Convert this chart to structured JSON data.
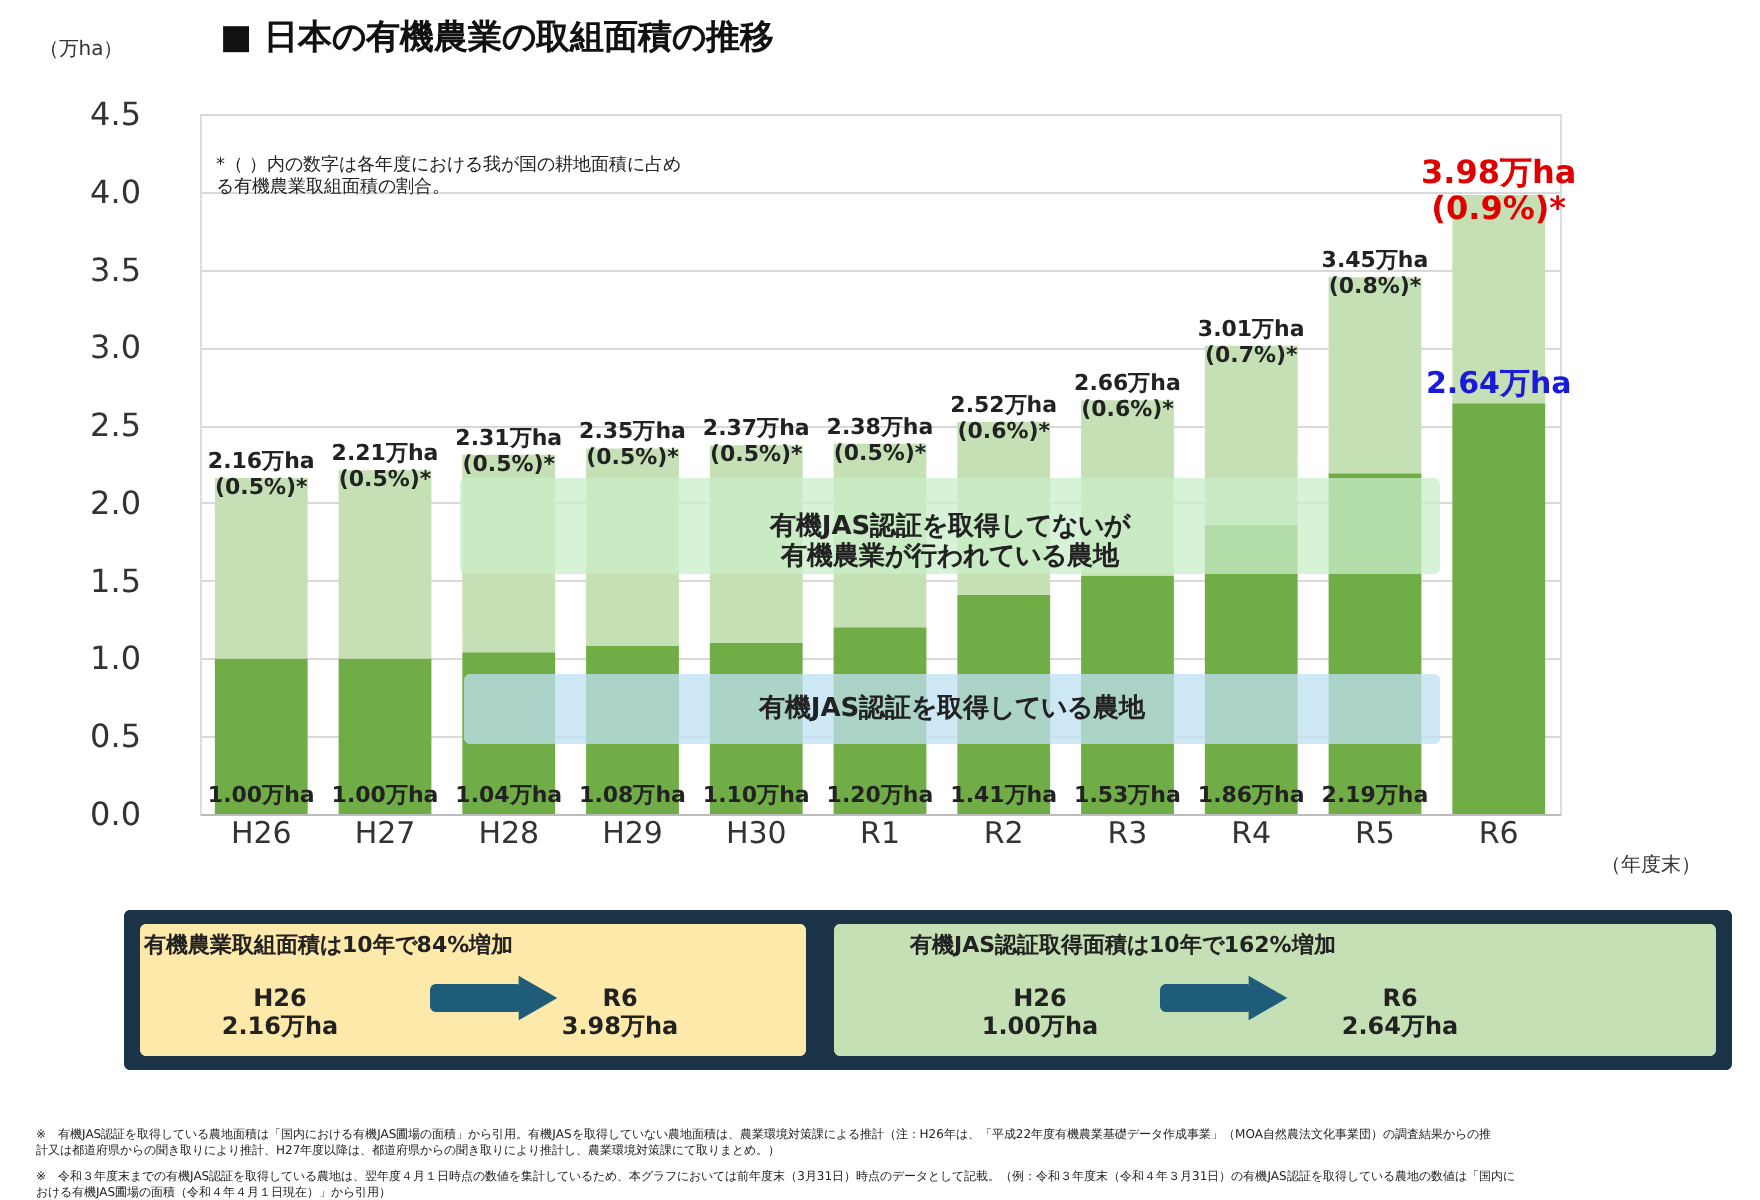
{
  "chart_data": {
    "type": "bar",
    "stacked": true,
    "title": "■  日本の有機農業の取組面積の推移",
    "xlabel": "（年度末）",
    "ylabel": "（万ha）",
    "categories": [
      "H26",
      "H27",
      "H28",
      "H29",
      "H30",
      "R1",
      "R2",
      "R3",
      "R4",
      "R5",
      "R6"
    ],
    "series": [
      {
        "color": "#70ad47",
        "values": [
          1.0,
          1.0,
          1.04,
          1.08,
          1.1,
          1.2,
          1.41,
          1.53,
          1.86,
          2.19,
          2.64
        ],
        "value_labels": [
          "1.00万ha",
          "1.00万ha",
          "1.04万ha",
          "1.08万ha",
          "1.10万ha",
          "1.20万ha",
          "1.41万ha",
          "1.53万ha",
          "1.86万ha",
          "2.19万ha",
          "2.64万ha"
        ]
      },
      {
        "color": "#c5e0b4",
        "values": [
          1.16,
          1.21,
          1.27,
          1.27,
          1.27,
          1.18,
          1.11,
          1.13,
          1.15,
          1.26,
          1.34
        ]
      }
    ],
    "totals": [
      "2.16万ha\n(0.5%)*",
      "2.21万ha\n(0.5%)*",
      "2.31万ha\n(0.5%)*",
      "2.35万ha\n(0.5%)*",
      "2.37万ha\n(0.5%)*",
      "2.38万ha\n(0.5%)*",
      "2.52万ha\n(0.6%)*",
      "2.66万ha\n(0.6%)*",
      "3.01万ha\n(0.7%)*",
      "3.45万ha\n(0.8%)*",
      "3.98万ha\n(0.9%)*"
    ],
    "ylim": [
      0,
      4.5
    ],
    "yticks": [
      {
        "value": 0,
        "label": "0.0"
      },
      0.5,
      {
        "value": 1,
        "label": "1.0"
      },
      1.5,
      {
        "value": 2,
        "label": "2.0"
      },
      2.5,
      {
        "value": 3,
        "label": "3.0"
      },
      3.5,
      {
        "value": 4,
        "label": "4.0"
      },
      4.5
    ],
    "grid": "y",
    "annotations": [
      "*（ ）内の数字は各年度における我が国の耕地面積に占める有機農業取組面積の割合。",
      "有機JAS認証を取得してないが有機農業が行われている農地",
      "有機JAS認証を取得している農地",
      "有機農業取組面積は10年で84%増加",
      "H26\n2.16万ha",
      "R6\n3.98万ha",
      "有機JAS認証取得面積は10年で162%増加",
      "H26\n1.00万ha",
      "R6\n2.64万ha",
      "※　有機JAS認証を取得している農地面積は「国内における有機JAS圃場の面積」から引用。有機JASを取得していない農地面積は、農業環境対策課による推計（注：H26年は、「平成22年度有機農業基礎データ作成事業」（MOA自然農法文化事業団）の調査結果からの推計又は都道府県からの聞き取りにより推計、H27年度以降は、都道府県からの聞き取りにより推計し、農業環境対策課にて取りまとめ。）",
      "※　令和３年度末までの有機JAS認証を取得している農地は、翌年度４月１日時点の数値を集計しているため、本グラフにおいては前年度末（3月31日）時点のデータとして記載。（例：令和３年度末（令和４年３月31日）の有機JAS認証を取得している農地の数値は「国内における有機JAS圃場の面積（令和４年４月１日現在）」から引用）"
    ]
  }
}
